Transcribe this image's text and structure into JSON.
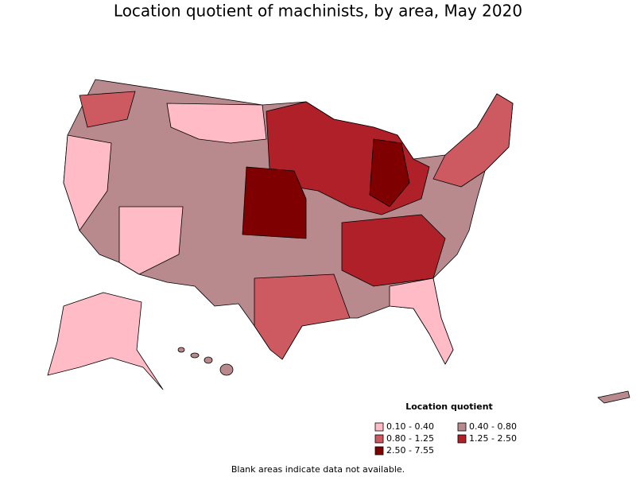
{
  "title": "Location quotient of machinists, by area, May 2020",
  "legend": {
    "title": "Location quotient",
    "items": [
      {
        "label": "0.10 - 0.40",
        "color": "#ffbcc6"
      },
      {
        "label": "0.40 - 0.80",
        "color": "#b88a8e"
      },
      {
        "label": "0.80 - 1.25",
        "color": "#cc5a60"
      },
      {
        "label": "1.25 - 2.50",
        "color": "#b02029"
      },
      {
        "label": "2.50 - 7.55",
        "color": "#7e0000"
      }
    ]
  },
  "note": "Blank areas indicate data not available."
}
